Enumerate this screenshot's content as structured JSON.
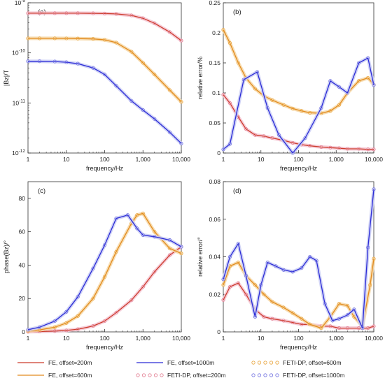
{
  "colors": {
    "fe200": "#cc3b2b",
    "fe600": "#e28a1e",
    "fe1000": "#2a2ad6",
    "fd200": "#e27a8f",
    "fd600": "#e8a33a",
    "fd1000": "#6f6fe0",
    "band200": "#f4c6d2",
    "band600": "#f6d7a5",
    "band1000": "#c9cdf5"
  },
  "legend": {
    "items": [
      {
        "label": "FE, offset=200m",
        "style": "line",
        "color_key": "fe200"
      },
      {
        "label": "FE, offset=1000m",
        "style": "line",
        "color_key": "fe1000"
      },
      {
        "label": "FETI-DP, offset=600m",
        "style": "marker",
        "color_key": "fd600"
      },
      {
        "label": "FE, offset=600m",
        "style": "line",
        "color_key": "fe600"
      },
      {
        "label": "FETI-DP, offset=200m",
        "style": "marker",
        "color_key": "fd200"
      },
      {
        "label": "FETI-DP, offset=1000m",
        "style": "marker",
        "color_key": "fd1000"
      }
    ]
  },
  "chart_data": [
    {
      "panel": "(a)",
      "type": "line",
      "xscale": "log",
      "yscale": "log",
      "xlabel": "frequency/Hz",
      "ylabel": "|Bz|/T",
      "xlim": [
        1,
        10000
      ],
      "ylim": [
        1e-12,
        1e-09
      ],
      "xticks": [
        1,
        10,
        100,
        1000,
        10000
      ],
      "xtick_labels": [
        "1",
        "10",
        "100",
        "1,000",
        "10,000"
      ],
      "yticks": [
        1e-12,
        1e-11,
        1e-10,
        1e-09
      ],
      "ytick_labels": [
        "10^-12",
        "10^-11",
        "10^-10",
        "10^-9"
      ],
      "series": [
        {
          "name": "FE, offset=200m",
          "color_key": "fe200",
          "band_key": "band200",
          "marker_key": "fd200",
          "x": [
            1,
            2,
            5,
            10,
            20,
            50,
            100,
            200,
            500,
            1000,
            2000,
            5000,
            10000
          ],
          "y": [
            6.2e-10,
            6.2e-10,
            6.2e-10,
            6.2e-10,
            6.2e-10,
            6.15e-10,
            6.1e-10,
            6e-10,
            5.6e-10,
            4.9e-10,
            3.9e-10,
            2.6e-10,
            1.75e-10
          ]
        },
        {
          "name": "FE, offset=600m",
          "color_key": "fe600",
          "band_key": "band600",
          "marker_key": "fd600",
          "x": [
            1,
            2,
            5,
            10,
            20,
            50,
            100,
            200,
            500,
            1000,
            2000,
            5000,
            10000
          ],
          "y": [
            1.95e-10,
            1.95e-10,
            1.95e-10,
            1.94e-10,
            1.93e-10,
            1.9e-10,
            1.82e-10,
            1.6e-10,
            1.05e-10,
            6.3e-11,
            3.7e-11,
            1.8e-11,
            1.05e-11
          ]
        },
        {
          "name": "FE, offset=1000m",
          "color_key": "fe1000",
          "band_key": "band1000",
          "marker_key": "fd1000",
          "x": [
            1,
            2,
            5,
            10,
            20,
            50,
            100,
            200,
            500,
            1000,
            2000,
            5000,
            10000
          ],
          "y": [
            6.8e-11,
            6.8e-11,
            6.7e-11,
            6.5e-11,
            6.1e-11,
            5e-11,
            3.7e-11,
            2.2e-11,
            1.1e-11,
            7.2e-12,
            4.8e-12,
            2.6e-12,
            1.55e-12
          ]
        }
      ]
    },
    {
      "panel": "(b)",
      "type": "line",
      "xscale": "log",
      "yscale": "linear",
      "xlabel": "frequency/Hz",
      "ylabel": "relative error/%",
      "xlim": [
        1,
        10000
      ],
      "ylim": [
        0,
        0.25
      ],
      "xticks": [
        1,
        10,
        100,
        1000,
        10000
      ],
      "xtick_labels": [
        "1",
        "10",
        "100",
        "1,000",
        "10,000"
      ],
      "yticks": [
        0,
        0.05,
        0.1,
        0.15,
        0.2,
        0.25
      ],
      "ytick_labels": [
        "0",
        "0.05",
        "0.1",
        "0.15",
        "0.2",
        "0.25"
      ],
      "series": [
        {
          "name": "FE, offset=200m",
          "color_key": "fe200",
          "band_key": "band200",
          "marker_key": "fd200",
          "x": [
            1,
            1.5,
            2.5,
            4,
            7,
            12,
            20,
            40,
            70,
            120,
            200,
            400,
            700,
            1200,
            2000,
            4000,
            7000,
            10000
          ],
          "y": [
            0.097,
            0.083,
            0.06,
            0.04,
            0.03,
            0.028,
            0.025,
            0.021,
            0.017,
            0.014,
            0.012,
            0.01,
            0.009,
            0.008,
            0.007,
            0.007,
            0.006,
            0.006
          ]
        },
        {
          "name": "FE, offset=600m",
          "color_key": "fe600",
          "band_key": "band600",
          "marker_key": "fd600",
          "x": [
            1,
            1.5,
            2.5,
            4,
            7,
            12,
            20,
            40,
            70,
            120,
            200,
            400,
            700,
            1200,
            2000,
            4000,
            7000,
            10000
          ],
          "y": [
            0.205,
            0.183,
            0.15,
            0.125,
            0.107,
            0.095,
            0.088,
            0.08,
            0.074,
            0.07,
            0.067,
            0.066,
            0.07,
            0.08,
            0.1,
            0.12,
            0.125,
            0.114
          ]
        },
        {
          "name": "FE, offset=1000m",
          "color_key": "fe1000",
          "band_key": "band1000",
          "marker_key": "fd1000",
          "x": [
            1,
            1.5,
            3.5,
            8,
            15,
            30,
            70,
            150,
            400,
            700,
            1200,
            2000,
            4000,
            7000,
            10000
          ],
          "y": [
            0.006,
            0.015,
            0.122,
            0.135,
            0.075,
            0.03,
            0.0,
            0.025,
            0.075,
            0.12,
            0.11,
            0.1,
            0.15,
            0.158,
            0.113
          ]
        }
      ]
    },
    {
      "panel": "(c)",
      "type": "line",
      "xscale": "log",
      "yscale": "linear",
      "xlabel": "frequency/Hz",
      "ylabel": "phase(Bz)/°",
      "xlim": [
        1,
        10000
      ],
      "ylim": [
        0,
        90
      ],
      "xticks": [
        1,
        10,
        100,
        1000,
        10000
      ],
      "xtick_labels": [
        "1",
        "10",
        "100",
        "1,000",
        "10,000"
      ],
      "yticks": [
        0,
        20,
        40,
        60,
        80
      ],
      "ytick_labels": [
        "0",
        "20",
        "40",
        "60",
        "80"
      ],
      "series": [
        {
          "name": "FE, offset=200m",
          "color_key": "fe200",
          "band_key": "band200",
          "marker_key": "fd200",
          "x": [
            1,
            2,
            5,
            10,
            20,
            50,
            100,
            200,
            500,
            1000,
            2000,
            5000,
            10000
          ],
          "y": [
            0.1,
            0.2,
            0.5,
            0.9,
            1.6,
            3.5,
            6.5,
            11.5,
            19,
            27,
            36,
            46,
            51
          ]
        },
        {
          "name": "FE, offset=600m",
          "color_key": "fe600",
          "band_key": "band600",
          "marker_key": "fd600",
          "x": [
            1,
            2,
            5,
            10,
            20,
            50,
            100,
            200,
            500,
            700,
            1000,
            2000,
            5000,
            10000
          ],
          "y": [
            0.6,
            1.2,
            2.8,
            5.3,
            9.5,
            20,
            33,
            48,
            65,
            70,
            71,
            60,
            50,
            47
          ]
        },
        {
          "name": "FE, offset=1000m",
          "color_key": "fe1000",
          "band_key": "band1000",
          "marker_key": "fd1000",
          "x": [
            1,
            2,
            5,
            10,
            20,
            50,
            100,
            200,
            400,
            700,
            1000,
            2000,
            5000,
            10000
          ],
          "y": [
            1.3,
            2.8,
            6.5,
            12,
            21,
            38,
            52,
            68,
            70,
            62,
            58,
            57,
            55,
            51
          ]
        }
      ]
    },
    {
      "panel": "(d)",
      "type": "line",
      "xscale": "log",
      "yscale": "linear",
      "xlabel": "frequency/Hz",
      "ylabel": "relative error/°",
      "xlim": [
        1,
        10000
      ],
      "ylim": [
        0,
        0.08
      ],
      "xticks": [
        1,
        10,
        100,
        1000,
        10000
      ],
      "xtick_labels": [
        "1",
        "10",
        "100",
        "1,000",
        "10,000"
      ],
      "yticks": [
        0,
        0.02,
        0.04,
        0.06,
        0.08
      ],
      "ytick_labels": [
        "0",
        "0.02",
        "0.04",
        "0.06",
        "0.08"
      ],
      "series": [
        {
          "name": "FE, offset=200m",
          "color_key": "fe200",
          "band_key": "band200",
          "marker_key": "fd200",
          "x": [
            1,
            1.5,
            2.5,
            4,
            7,
            12,
            20,
            40,
            70,
            120,
            200,
            400,
            700,
            1200,
            2000,
            4000,
            7000,
            10000
          ],
          "y": [
            0.017,
            0.024,
            0.026,
            0.02,
            0.012,
            0.008,
            0.007,
            0.006,
            0.005,
            0.004,
            0.004,
            0.003,
            0.003,
            0.002,
            0.002,
            0.002,
            0.002,
            0.003
          ]
        },
        {
          "name": "FE, offset=600m",
          "color_key": "fe600",
          "band_key": "band600",
          "marker_key": "fd600",
          "x": [
            1,
            1.5,
            2.5,
            4,
            7,
            12,
            20,
            40,
            70,
            120,
            200,
            400,
            700,
            1200,
            2000,
            3000,
            5000,
            8000,
            10000
          ],
          "y": [
            0.025,
            0.035,
            0.037,
            0.03,
            0.025,
            0.02,
            0.016,
            0.013,
            0.01,
            0.007,
            0.004,
            0.002,
            0.008,
            0.015,
            0.014,
            0.008,
            0.003,
            0.025,
            0.039
          ]
        },
        {
          "name": "FE, offset=1000m",
          "color_key": "fe1000",
          "band_key": "band1000",
          "marker_key": "fd1000",
          "x": [
            1,
            1.5,
            2.5,
            4,
            7,
            10,
            15,
            25,
            40,
            70,
            120,
            200,
            300,
            500,
            800,
            1200,
            2000,
            3000,
            5000,
            7000,
            10000
          ],
          "y": [
            0.028,
            0.04,
            0.047,
            0.03,
            0.008,
            0.025,
            0.037,
            0.035,
            0.033,
            0.032,
            0.034,
            0.04,
            0.038,
            0.015,
            0.006,
            0.007,
            0.009,
            0.012,
            0.002,
            0.045,
            0.076
          ]
        }
      ]
    }
  ]
}
